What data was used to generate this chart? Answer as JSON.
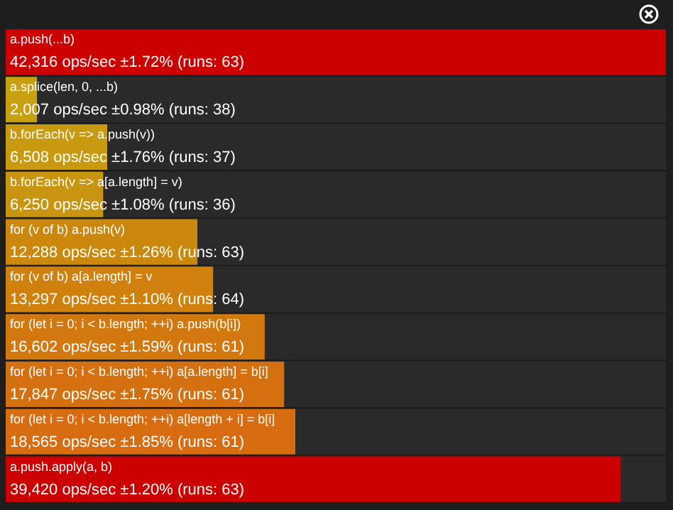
{
  "chart_data": {
    "type": "bar",
    "orientation": "horizontal",
    "categories": [
      "a.push(...b)",
      "a.splice(len, 0, ...b)",
      "b.forEach(v => a.push(v))",
      "b.forEach(v => a[a.length] = v)",
      "for (v of b) a.push(v)",
      "for (v of b) a[a.length] = v",
      "for (let i = 0; i < b.length; ++i) a.push(b[i])",
      "for (let i = 0; i < b.length; ++i) a[a.length] = b[i]",
      "for (let i = 0; i < b.length; ++i) a[length + i] = b[i]",
      "a.push.apply(a, b)"
    ],
    "values": [
      42316,
      2007,
      6508,
      6250,
      12288,
      13297,
      16602,
      17847,
      18565,
      39420
    ],
    "colors": [
      "#cc0000",
      "#c9a00f",
      "#c99a10",
      "#c99510",
      "#cc880c",
      "#cf800d",
      "#d2780e",
      "#d4700f",
      "#d86c10",
      "#cc0000"
    ],
    "value_labels": [
      "42,316 ops/sec ±1.72% (runs: 63)",
      "2,007 ops/sec ±0.98% (runs: 38)",
      "6,508 ops/sec ±1.76% (runs: 37)",
      "6,250 ops/sec ±1.08% (runs: 36)",
      "12,288 ops/sec ±1.26% (runs: 63)",
      "13,297 ops/sec ±1.10% (runs: 64)",
      "16,602 ops/sec ±1.59% (runs: 61)",
      "17,847 ops/sec ±1.75% (runs: 61)",
      "18,565 ops/sec ±1.85% (runs: 61)",
      "39,420 ops/sec ±1.20% (runs: 63)"
    ],
    "legend": false
  }
}
